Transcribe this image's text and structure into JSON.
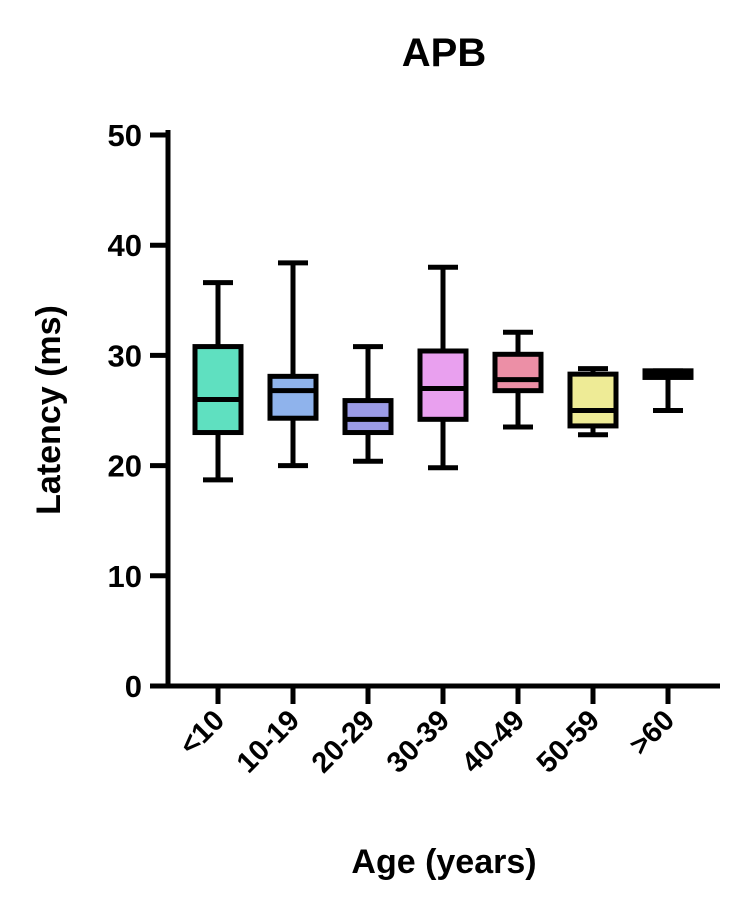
{
  "chart_data": {
    "type": "box",
    "title": "APB",
    "xlabel": "Age (years)",
    "ylabel": "Latency (ms)",
    "ylim": [
      0,
      50
    ],
    "yticks": [
      "0",
      "10",
      "20",
      "30",
      "40",
      "50"
    ],
    "yticks_values": [
      0,
      10,
      20,
      30,
      40,
      50
    ],
    "grid": false,
    "categories": [
      "<10",
      "10-19",
      "20-29",
      "30-39",
      "40-49",
      "50-59",
      ">60"
    ],
    "boxes": [
      {
        "category": "<10",
        "min": 18.7,
        "q1": 23.0,
        "median": 26.0,
        "q3": 30.8,
        "max": 36.6,
        "color": "#5fe0c0"
      },
      {
        "category": "10-19",
        "min": 20.0,
        "q1": 24.3,
        "median": 26.8,
        "q3": 28.1,
        "max": 38.4,
        "color": "#8fb3ec"
      },
      {
        "category": "20-29",
        "min": 20.4,
        "q1": 23.0,
        "median": 24.2,
        "q3": 25.9,
        "max": 30.8,
        "color": "#9b9be6"
      },
      {
        "category": "30-39",
        "min": 19.8,
        "q1": 24.2,
        "median": 27.0,
        "q3": 30.4,
        "max": 38.0,
        "color": "#e9a0ef"
      },
      {
        "category": "40-49",
        "min": 23.5,
        "q1": 26.8,
        "median": 27.8,
        "q3": 30.1,
        "max": 32.1,
        "color": "#ec8fa6"
      },
      {
        "category": "50-59",
        "min": 22.8,
        "q1": 23.6,
        "median": 25.0,
        "q3": 28.3,
        "max": 28.8,
        "color": "#eeeb96"
      },
      {
        "category": ">60",
        "min": 25.0,
        "q1": 28.0,
        "median": 28.4,
        "q3": 28.6,
        "max": 28.6,
        "color": "#8fdfc4"
      }
    ]
  }
}
